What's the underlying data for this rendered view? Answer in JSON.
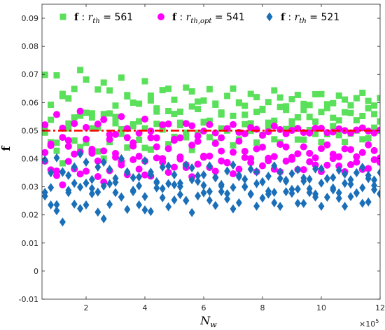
{
  "chart_data": {
    "type": "scatter",
    "ylabel": "f",
    "xlabel": "N_w",
    "xlabel_sub": "w",
    "xlabel_base": "N",
    "x_exponent": "×10",
    "x_exponent_power": "5",
    "xlim": [
      0.5,
      12.0
    ],
    "ylim": [
      -0.01,
      0.095
    ],
    "xticks": [
      2,
      4,
      6,
      8,
      10,
      12
    ],
    "xtick_labels": [
      "2",
      "4",
      "6",
      "8",
      "10",
      "12"
    ],
    "yticks": [
      -0.01,
      0,
      0.01,
      0.02,
      0.03,
      0.04,
      0.05,
      0.06,
      0.07,
      0.08,
      0.09
    ],
    "ytick_labels": [
      "-0.01",
      "0",
      "0.01",
      "0.02",
      "0.03",
      "0.04",
      "0.05",
      "0.06",
      "0.07",
      "0.08",
      "0.09"
    ],
    "grid": false,
    "legend_position": "top",
    "reference_line": {
      "y": 0.05,
      "style": "dash-dot",
      "color": "#ff0000"
    },
    "series": [
      {
        "name": "f : r_th = 561",
        "legend": {
          "bold": "f",
          "sep": " : ",
          "var": "r",
          "sub": "th",
          "rest": " = 561"
        },
        "marker": "square",
        "color": "#5ae05a",
        "x_start": 0.6,
        "x_step": 0.2,
        "n": 58,
        "bands": [
          {
            "center": 0.0485,
            "half_start": 0.012,
            "half_end": 0.003
          },
          {
            "center": 0.0555,
            "half_start": 0.018,
            "half_end": 0.0025
          },
          {
            "center": 0.061,
            "half_start": 0.015,
            "half_end": 0.0025
          }
        ]
      },
      {
        "name": "f : r_th,opt = 541",
        "legend": {
          "bold": "f",
          "sep": " : ",
          "var": "r",
          "sub": "th,opt",
          "rest": " = 541"
        },
        "marker": "circle",
        "color": "#ff00ff",
        "x_start": 0.6,
        "x_step": 0.2,
        "n": 58,
        "bands": [
          {
            "center": 0.0375,
            "half_start": 0.008,
            "half_end": 0.0025
          },
          {
            "center": 0.0425,
            "half_start": 0.012,
            "half_end": 0.0025
          },
          {
            "center": 0.05,
            "half_start": 0.01,
            "half_end": 0.001
          }
        ]
      },
      {
        "name": "f : r_th = 521",
        "legend": {
          "bold": "f",
          "sep": " : ",
          "var": "r",
          "sub": "th",
          "rest": " = 521"
        },
        "marker": "diamond",
        "color": "#1a6fb8",
        "x_start": 0.6,
        "x_step": 0.2,
        "n": 58,
        "bands": [
          {
            "center": 0.026,
            "half_start": 0.01,
            "half_end": 0.0035
          },
          {
            "center": 0.03,
            "half_start": 0.012,
            "half_end": 0.003
          },
          {
            "center": 0.0345,
            "half_start": 0.01,
            "half_end": 0.0025
          }
        ]
      }
    ]
  }
}
